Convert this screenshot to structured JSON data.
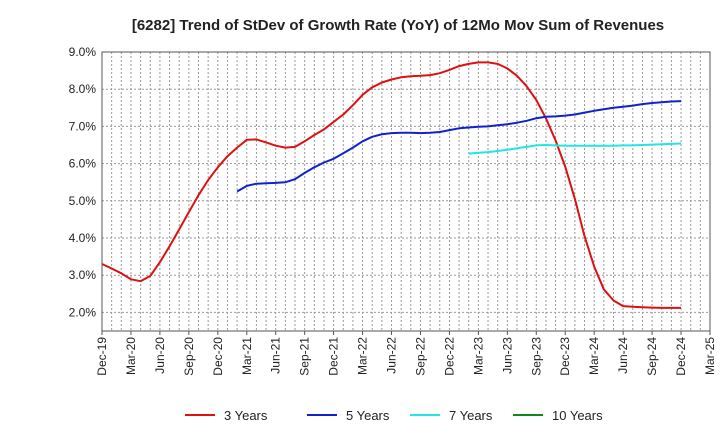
{
  "chart_data": {
    "type": "line",
    "title": "[6282]  Trend of StDev of Growth Rate (YoY) of 12Mo Mov Sum of Revenues",
    "xlabel": "",
    "ylabel": "",
    "ylim": [
      0.015,
      0.09
    ],
    "y_ticks": [
      0.02,
      0.03,
      0.04,
      0.05,
      0.06,
      0.07,
      0.08,
      0.09
    ],
    "y_tick_labels": [
      "2.0%",
      "3.0%",
      "4.0%",
      "5.0%",
      "6.0%",
      "7.0%",
      "8.0%",
      "9.0%"
    ],
    "x_tick_labels": [
      "Dec-19",
      "Mar-20",
      "Jun-20",
      "Sep-20",
      "Dec-20",
      "Mar-21",
      "Jun-21",
      "Sep-21",
      "Dec-21",
      "Mar-22",
      "Jun-22",
      "Sep-22",
      "Dec-22",
      "Mar-23",
      "Jun-23",
      "Sep-23",
      "Dec-23",
      "Mar-24",
      "Jun-24",
      "Sep-24",
      "Dec-24",
      "Mar-25"
    ],
    "x_range_months": [
      0,
      63
    ],
    "grid": true,
    "legend_position": "bottom",
    "series": [
      {
        "name": "3 Years",
        "color": "#dd1111",
        "x": [
          0,
          1,
          2,
          3,
          4,
          5,
          6,
          7,
          8,
          9,
          10,
          11,
          12,
          13,
          14,
          15,
          16,
          17,
          18,
          19,
          20,
          21,
          22,
          23,
          24,
          25,
          26,
          27,
          28,
          29,
          30,
          31,
          32,
          33,
          34,
          35,
          36,
          37,
          38,
          39,
          40,
          41,
          42,
          43,
          44,
          45,
          46,
          47,
          48,
          49,
          50,
          51,
          52,
          53,
          54,
          55,
          56,
          57,
          58,
          59,
          60
        ],
        "values": [
          0.033,
          0.0318,
          0.0305,
          0.0289,
          0.0284,
          0.0298,
          0.0335,
          0.0378,
          0.0423,
          0.047,
          0.0515,
          0.0556,
          0.059,
          0.062,
          0.0643,
          0.0664,
          0.0665,
          0.0657,
          0.0648,
          0.0643,
          0.0645,
          0.066,
          0.0677,
          0.0692,
          0.0712,
          0.0732,
          0.0757,
          0.0785,
          0.0805,
          0.0818,
          0.0826,
          0.0832,
          0.0835,
          0.0836,
          0.0838,
          0.0843,
          0.0852,
          0.0862,
          0.0868,
          0.0872,
          0.0872,
          0.0868,
          0.0856,
          0.0836,
          0.0808,
          0.0771,
          0.0722,
          0.0662,
          0.0592,
          0.0505,
          0.0405,
          0.0323,
          0.0262,
          0.0232,
          0.0217,
          0.0215,
          0.0214,
          0.0213,
          0.0212,
          0.0212,
          0.0212
        ]
      },
      {
        "name": "5 Years",
        "color": "#1122cc",
        "x": [
          14,
          15,
          16,
          17,
          18,
          19,
          20,
          21,
          22,
          23,
          24,
          25,
          26,
          27,
          28,
          29,
          30,
          31,
          32,
          33,
          34,
          35,
          36,
          37,
          38,
          39,
          40,
          41,
          42,
          43,
          44,
          45,
          46,
          47,
          48,
          49,
          50,
          51,
          52,
          53,
          54,
          55,
          56,
          57,
          58,
          59,
          60
        ],
        "values": [
          0.0525,
          0.054,
          0.0546,
          0.0547,
          0.0548,
          0.055,
          0.0558,
          0.0575,
          0.059,
          0.0603,
          0.0613,
          0.0628,
          0.0643,
          0.066,
          0.0672,
          0.0679,
          0.0682,
          0.0683,
          0.0683,
          0.0682,
          0.0683,
          0.0685,
          0.069,
          0.0695,
          0.0697,
          0.0699,
          0.07,
          0.0703,
          0.0706,
          0.071,
          0.0715,
          0.0722,
          0.0726,
          0.0727,
          0.0729,
          0.0732,
          0.0737,
          0.0742,
          0.0746,
          0.075,
          0.0753,
          0.0756,
          0.076,
          0.0763,
          0.0765,
          0.0767,
          0.0768
        ]
      },
      {
        "name": "7 Years",
        "color": "#22e5e5",
        "x": [
          38,
          39,
          40,
          41,
          42,
          43,
          44,
          45,
          46,
          47,
          48,
          49,
          50,
          51,
          52,
          53,
          54,
          55,
          56,
          57,
          58,
          59,
          60
        ],
        "values": [
          0.0627,
          0.0629,
          0.0631,
          0.0634,
          0.0637,
          0.0641,
          0.0645,
          0.0649,
          0.065,
          0.0649,
          0.0648,
          0.0648,
          0.0648,
          0.0648,
          0.0648,
          0.0648,
          0.0649,
          0.0649,
          0.065,
          0.0651,
          0.0652,
          0.0653,
          0.0654
        ]
      },
      {
        "name": "10 Years",
        "color": "#118811",
        "x": [],
        "values": []
      }
    ]
  }
}
